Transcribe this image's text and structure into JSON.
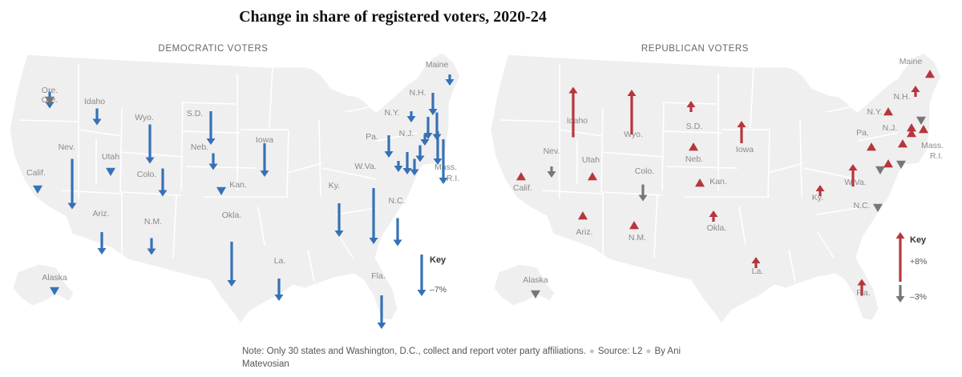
{
  "title": "Change in share of registered voters, 2020-24",
  "colors": {
    "democratic": "#3671b5",
    "republican": "#b9353c",
    "neutral": "#777777",
    "land": "#efefef",
    "state": "#e4e4e4"
  },
  "panels": [
    {
      "heading": "DEMOCRATIC VOTERS",
      "party": "democratic",
      "key": {
        "title": "Key",
        "value": "–7%"
      },
      "states": [
        {
          "name": "Ore.",
          "change": -3
        },
        {
          "name": "Idaho",
          "change": -3
        },
        {
          "name": "Wyo.",
          "change": -7
        },
        {
          "name": "S.D.",
          "change": -6
        },
        {
          "name": "Iowa",
          "change": -6
        },
        {
          "name": "Maine",
          "change": -2
        },
        {
          "name": "N.H.",
          "change": -4
        },
        {
          "name": "N.Y.",
          "change": -2
        },
        {
          "name": "Calif.",
          "change": -1
        },
        {
          "name": "Nev.",
          "change": -9
        },
        {
          "name": "Utah",
          "change": -1
        },
        {
          "name": "Colo.",
          "change": -5
        },
        {
          "name": "Neb.",
          "change": -3
        },
        {
          "name": "Kan.",
          "change": -1
        },
        {
          "name": "Pa.",
          "change": -4
        },
        {
          "name": "N.J.",
          "change": -4
        },
        {
          "name": "Mass.",
          "change": -8
        },
        {
          "name": "R.I.",
          "change": -6
        },
        {
          "name": "Ariz.",
          "change": -4
        },
        {
          "name": "N.M.",
          "change": -3
        },
        {
          "name": "Okla.",
          "change": -8
        },
        {
          "name": "Ky.",
          "change": -6
        },
        {
          "name": "W.Va.",
          "change": -10
        },
        {
          "name": "N.C.",
          "change": -5
        },
        {
          "name": "La.",
          "change": -4
        },
        {
          "name": "Fla.",
          "change": -6
        },
        {
          "name": "Alaska",
          "change": -1
        }
      ]
    },
    {
      "heading": "REPUBLICAN VOTERS",
      "party": "republican",
      "key": {
        "title": "Key",
        "value_up": "+8%",
        "value_down": "–3%"
      },
      "states": [
        {
          "name": "Ore.",
          "change": -1
        },
        {
          "name": "Idaho",
          "change": 9
        },
        {
          "name": "Wyo.",
          "change": 8
        },
        {
          "name": "S.D.",
          "change": 2
        },
        {
          "name": "Iowa",
          "change": 4
        },
        {
          "name": "Maine",
          "change": 1
        },
        {
          "name": "N.H.",
          "change": 2
        },
        {
          "name": "N.Y.",
          "change": 1
        },
        {
          "name": "Calif.",
          "change": 1
        },
        {
          "name": "Nev.",
          "change": -2
        },
        {
          "name": "Utah",
          "change": 1
        },
        {
          "name": "Colo.",
          "change": -3
        },
        {
          "name": "Neb.",
          "change": 1
        },
        {
          "name": "Kan.",
          "change": 1
        },
        {
          "name": "Pa.",
          "change": 1
        },
        {
          "name": "N.J.",
          "change": 1
        },
        {
          "name": "Mass.",
          "change": 1
        },
        {
          "name": "R.I.",
          "change": 1
        },
        {
          "name": "Ariz.",
          "change": 1
        },
        {
          "name": "N.M.",
          "change": 1
        },
        {
          "name": "Okla.",
          "change": 2
        },
        {
          "name": "Ky.",
          "change": 2
        },
        {
          "name": "W.Va.",
          "change": 4
        },
        {
          "name": "N.C.",
          "change": -1
        },
        {
          "name": "La.",
          "change": 2
        },
        {
          "name": "Fla.",
          "change": 3
        },
        {
          "name": "Alaska",
          "change": -1
        }
      ]
    }
  ],
  "note": {
    "text": "Note: Only 30 states and Washington, D.C., collect and report voter party affiliations.",
    "source": "Source: L2",
    "byline": "By Ani Matevosian"
  }
}
